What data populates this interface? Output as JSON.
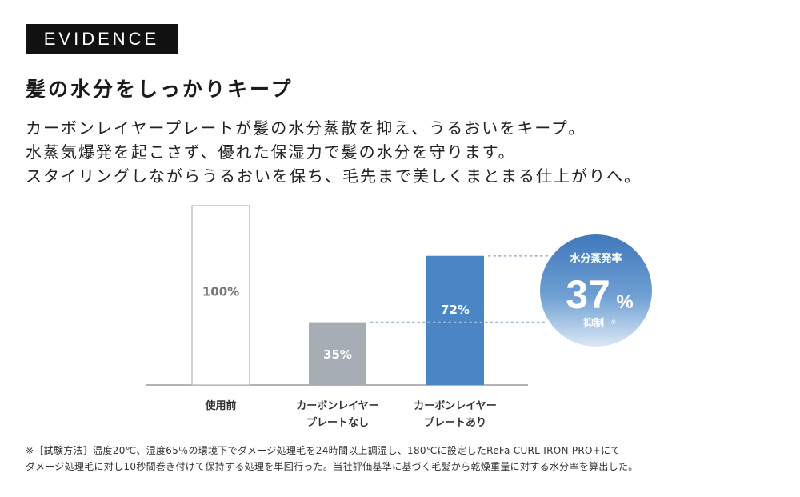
{
  "badge": "EVIDENCE",
  "headline": "髪の水分をしっかりキープ",
  "body": [
    "カーボンレイヤープレートが髪の水分蒸散を抑え、うるおいをキープ。",
    "水蒸気爆発を起こさず、優れた保湿力で髪の水分を守ります。",
    "スタイリングしながらうるおいを保ち、毛先まで美しくまとまる仕上がりへ。"
  ],
  "chart_data": {
    "type": "bar",
    "categories": [
      [
        "使用前"
      ],
      [
        "カーボンレイヤー",
        "プレートなし"
      ],
      [
        "カーボンレイヤー",
        "プレートあり"
      ]
    ],
    "values": [
      100,
      35,
      72
    ],
    "value_labels": [
      "100%",
      "35%",
      "72%"
    ],
    "ylim": [
      0,
      100
    ],
    "colors": [
      "#ffffff",
      "#a6adb4",
      "#4a85c5"
    ],
    "callout": {
      "title": "水分蒸発率",
      "value": "37",
      "unit": "%",
      "caption": "抑制",
      "mark": "※"
    }
  },
  "footnote": [
    "※［試験方法］温度20℃、湿度65％の環境下でダメージ処理毛を24時間以上調湿し、180℃に設定したReFa CURL IRON PRO+にて",
    "ダメージ処理毛に対し10秒間巻き付けて保持する処理を単回行った。当社評価基準に基づく毛髪から乾燥重量に対する水分率を算出した。"
  ]
}
